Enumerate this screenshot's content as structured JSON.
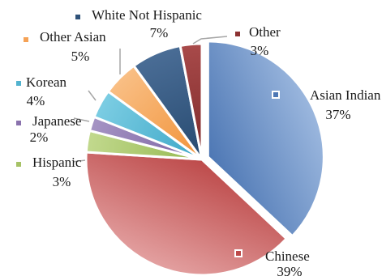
{
  "chart_data": {
    "type": "pie",
    "title": "",
    "slices": [
      {
        "label": "Asian Indian",
        "value": 37,
        "value_label": "37%",
        "color": "#6f95c9",
        "color_dark": "#4d77b4",
        "color_light": "#9bb7de"
      },
      {
        "label": "Chinese",
        "value": 39,
        "value_label": "39%",
        "color": "#c95858",
        "color_dark": "#bd4a4a",
        "color_light": "#e3a0a0"
      },
      {
        "label": "Hispanic",
        "value": 3,
        "value_label": "3%",
        "color": "#a6c266",
        "color_dark": "#94b84f",
        "color_light": "#c2d98e"
      },
      {
        "label": "Japanese",
        "value": 2,
        "value_label": "2%",
        "color": "#8a72ad",
        "color_dark": "#7c63a2",
        "color_light": "#a594c4"
      },
      {
        "label": "Korean",
        "value": 4,
        "value_label": "4%",
        "color": "#52b3cf",
        "color_dark": "#3ca7c7",
        "color_light": "#7ccde3"
      },
      {
        "label": "Other Asian",
        "value": 5,
        "value_label": "5%",
        "color": "#f5a256",
        "color_dark": "#f19238",
        "color_light": "#f9bf85"
      },
      {
        "label": "White Not Hispanic",
        "value": 7,
        "value_label": "7%",
        "color": "#2f5279",
        "color_dark": "#274a70",
        "color_light": "#4a6d96"
      },
      {
        "label": "Other",
        "value": 3,
        "value_label": "3%",
        "color": "#8c3232",
        "color_dark": "#7e2a2a",
        "color_light": "#a84a4a"
      }
    ],
    "start_angle_deg": 0,
    "direction": "clockwise",
    "legend": "none",
    "data_labels": "category and percentage"
  }
}
